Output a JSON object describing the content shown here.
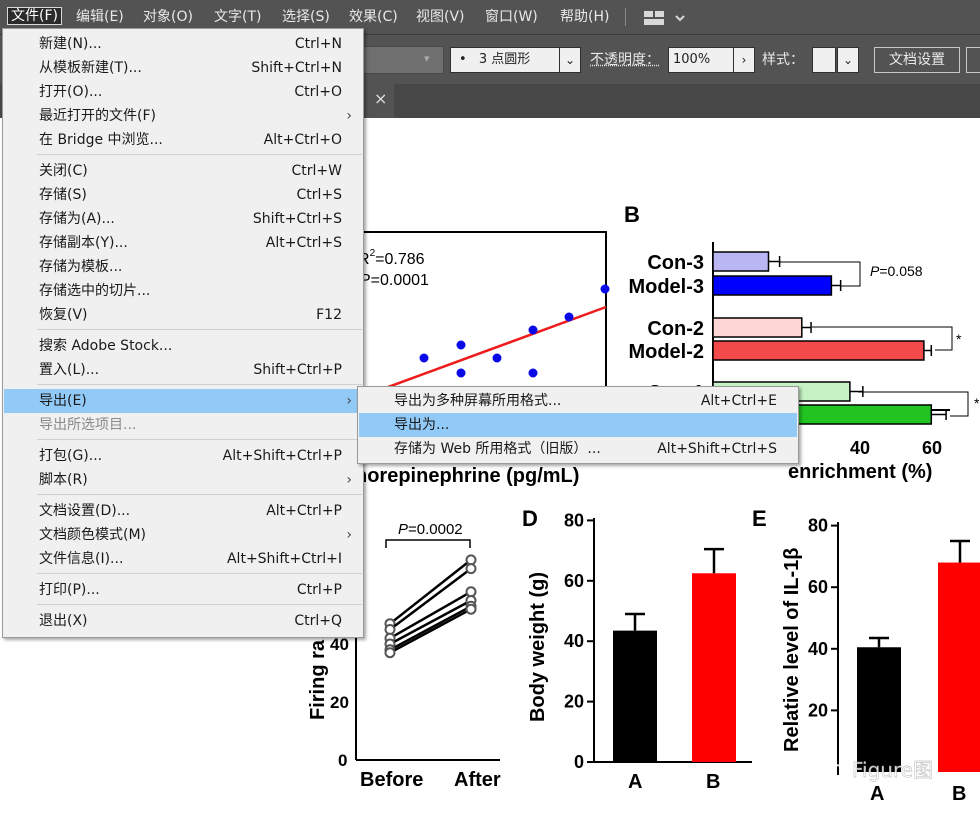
{
  "menubar": {
    "items": [
      "文件(F)",
      "编辑(E)",
      "对象(O)",
      "文字(T)",
      "选择(S)",
      "效果(C)",
      "视图(V)",
      "窗口(W)",
      "帮助(H)"
    ]
  },
  "controlbar": {
    "brush_value": "3 点圆形",
    "opacity_label": "不透明度：",
    "opacity_value": "100%",
    "style_label": "样式：",
    "doc_settings": "文档设置"
  },
  "file_menu": {
    "items": [
      {
        "label": "新建(N)...",
        "shortcut": "Ctrl+N"
      },
      {
        "label": "从模板新建(T)...",
        "shortcut": "Shift+Ctrl+N"
      },
      {
        "label": "打开(O)...",
        "shortcut": "Ctrl+O"
      },
      {
        "label": "最近打开的文件(F)",
        "shortcut": ""
      },
      {
        "label": "在 Bridge 中浏览...",
        "shortcut": "Alt+Ctrl+O"
      },
      {
        "label": "关闭(C)",
        "shortcut": "Ctrl+W"
      },
      {
        "label": "存储(S)",
        "shortcut": "Ctrl+S"
      },
      {
        "label": "存储为(A)...",
        "shortcut": "Shift+Ctrl+S"
      },
      {
        "label": "存储副本(Y)...",
        "shortcut": "Alt+Ctrl+S"
      },
      {
        "label": "存储为模板...",
        "shortcut": ""
      },
      {
        "label": "存储选中的切片...",
        "shortcut": ""
      },
      {
        "label": "恢复(V)",
        "shortcut": "F12"
      },
      {
        "label": "搜索 Adobe Stock...",
        "shortcut": ""
      },
      {
        "label": "置入(L)...",
        "shortcut": "Shift+Ctrl+P"
      },
      {
        "label": "导出(E)",
        "shortcut": ""
      },
      {
        "label": "导出所选项目...",
        "shortcut": ""
      },
      {
        "label": "打包(G)...",
        "shortcut": "Alt+Shift+Ctrl+P"
      },
      {
        "label": "脚本(R)",
        "shortcut": ""
      },
      {
        "label": "文档设置(D)...",
        "shortcut": "Alt+Ctrl+P"
      },
      {
        "label": "文档颜色模式(M)",
        "shortcut": ""
      },
      {
        "label": "文件信息(I)...",
        "shortcut": "Alt+Shift+Ctrl+I"
      },
      {
        "label": "打印(P)...",
        "shortcut": "Ctrl+P"
      },
      {
        "label": "退出(X)",
        "shortcut": "Ctrl+Q"
      }
    ]
  },
  "export_submenu": {
    "items": [
      {
        "label": "导出为多种屏幕所用格式...",
        "shortcut": "Alt+Ctrl+E"
      },
      {
        "label": "导出为...",
        "shortcut": ""
      },
      {
        "label": "存储为 Web 所用格式（旧版）...",
        "shortcut": "Alt+Shift+Ctrl+S"
      }
    ]
  },
  "figure": {
    "panel_a": {
      "r2": "=0.786",
      "p": "P=0.0001",
      "xlabel": "norepinephrine (pg/mL)"
    },
    "panel_b": {
      "label": "B",
      "p_label": "P=0.058",
      "star": "*",
      "xlabel": "enrichment (%)",
      "ticks": [
        "40",
        "60"
      ]
    },
    "panel_c": {
      "p_label": "P=0.0002",
      "ylabel": "Firing ra",
      "yticks": [
        "40",
        "20",
        "0"
      ],
      "xticks": [
        "Before",
        "After"
      ]
    },
    "panel_d": {
      "label": "D",
      "ylabel": "Body weight (g)",
      "yticks": [
        "80",
        "60",
        "40",
        "20",
        "0"
      ],
      "xticks": [
        "A",
        "B"
      ]
    },
    "panel_e": {
      "label": "E",
      "ylabel": "Relative level of IL-1β",
      "yticks": [
        "80",
        "60",
        "40",
        "20"
      ],
      "xticks": [
        "A",
        "B"
      ]
    },
    "watermark": "Figure图"
  },
  "chart_data": [
    {
      "type": "scatter",
      "panel": "A",
      "x": [
        1,
        2,
        3,
        4,
        5,
        6,
        7,
        8,
        9
      ],
      "y": [
        0.3,
        0.5,
        0.45,
        0.58,
        0.5,
        0.45,
        0.6,
        0.65,
        0.92
      ],
      "title": "",
      "xlabel": "norepinephrine (pg/mL)",
      "ylabel": ""
    },
    {
      "type": "bar",
      "panel": "B",
      "categories": [
        "Con-3",
        "Model-3",
        "Con-2",
        "Model-2",
        "Con-1",
        "Model-1"
      ],
      "values": [
        15,
        32,
        24,
        57,
        37,
        59
      ],
      "colors": [
        "#b9b6f3",
        "#0000ff",
        "#ffd6d6",
        "#f24a4a",
        "#c6f2c6",
        "#22c422"
      ],
      "xlabel": "enrichment (%)"
    },
    {
      "type": "line",
      "panel": "C",
      "categories": [
        "Before",
        "After"
      ],
      "series": [
        {
          "values": [
            47,
            69
          ]
        },
        {
          "values": [
            45,
            66
          ]
        },
        {
          "values": [
            42,
            58
          ]
        },
        {
          "values": [
            40,
            55
          ]
        },
        {
          "values": [
            38,
            53
          ]
        },
        {
          "values": [
            37,
            52
          ]
        }
      ],
      "ylabel": "Firing ra"
    },
    {
      "type": "bar",
      "panel": "D",
      "categories": [
        "A",
        "B"
      ],
      "values": [
        43.5,
        62.5
      ],
      "errors": [
        5.5,
        8
      ],
      "colors": [
        "#000000",
        "#ff0000"
      ],
      "ylabel": "Body weight (g)",
      "ylim": [
        0,
        80
      ]
    },
    {
      "type": "bar",
      "panel": "E",
      "categories": [
        "A",
        "B"
      ],
      "values": [
        40.5,
        68
      ],
      "errors": [
        3,
        7
      ],
      "colors": [
        "#000000",
        "#ff0000"
      ],
      "ylabel": "Relative level of IL-1β",
      "ylim": [
        0,
        80
      ]
    }
  ]
}
